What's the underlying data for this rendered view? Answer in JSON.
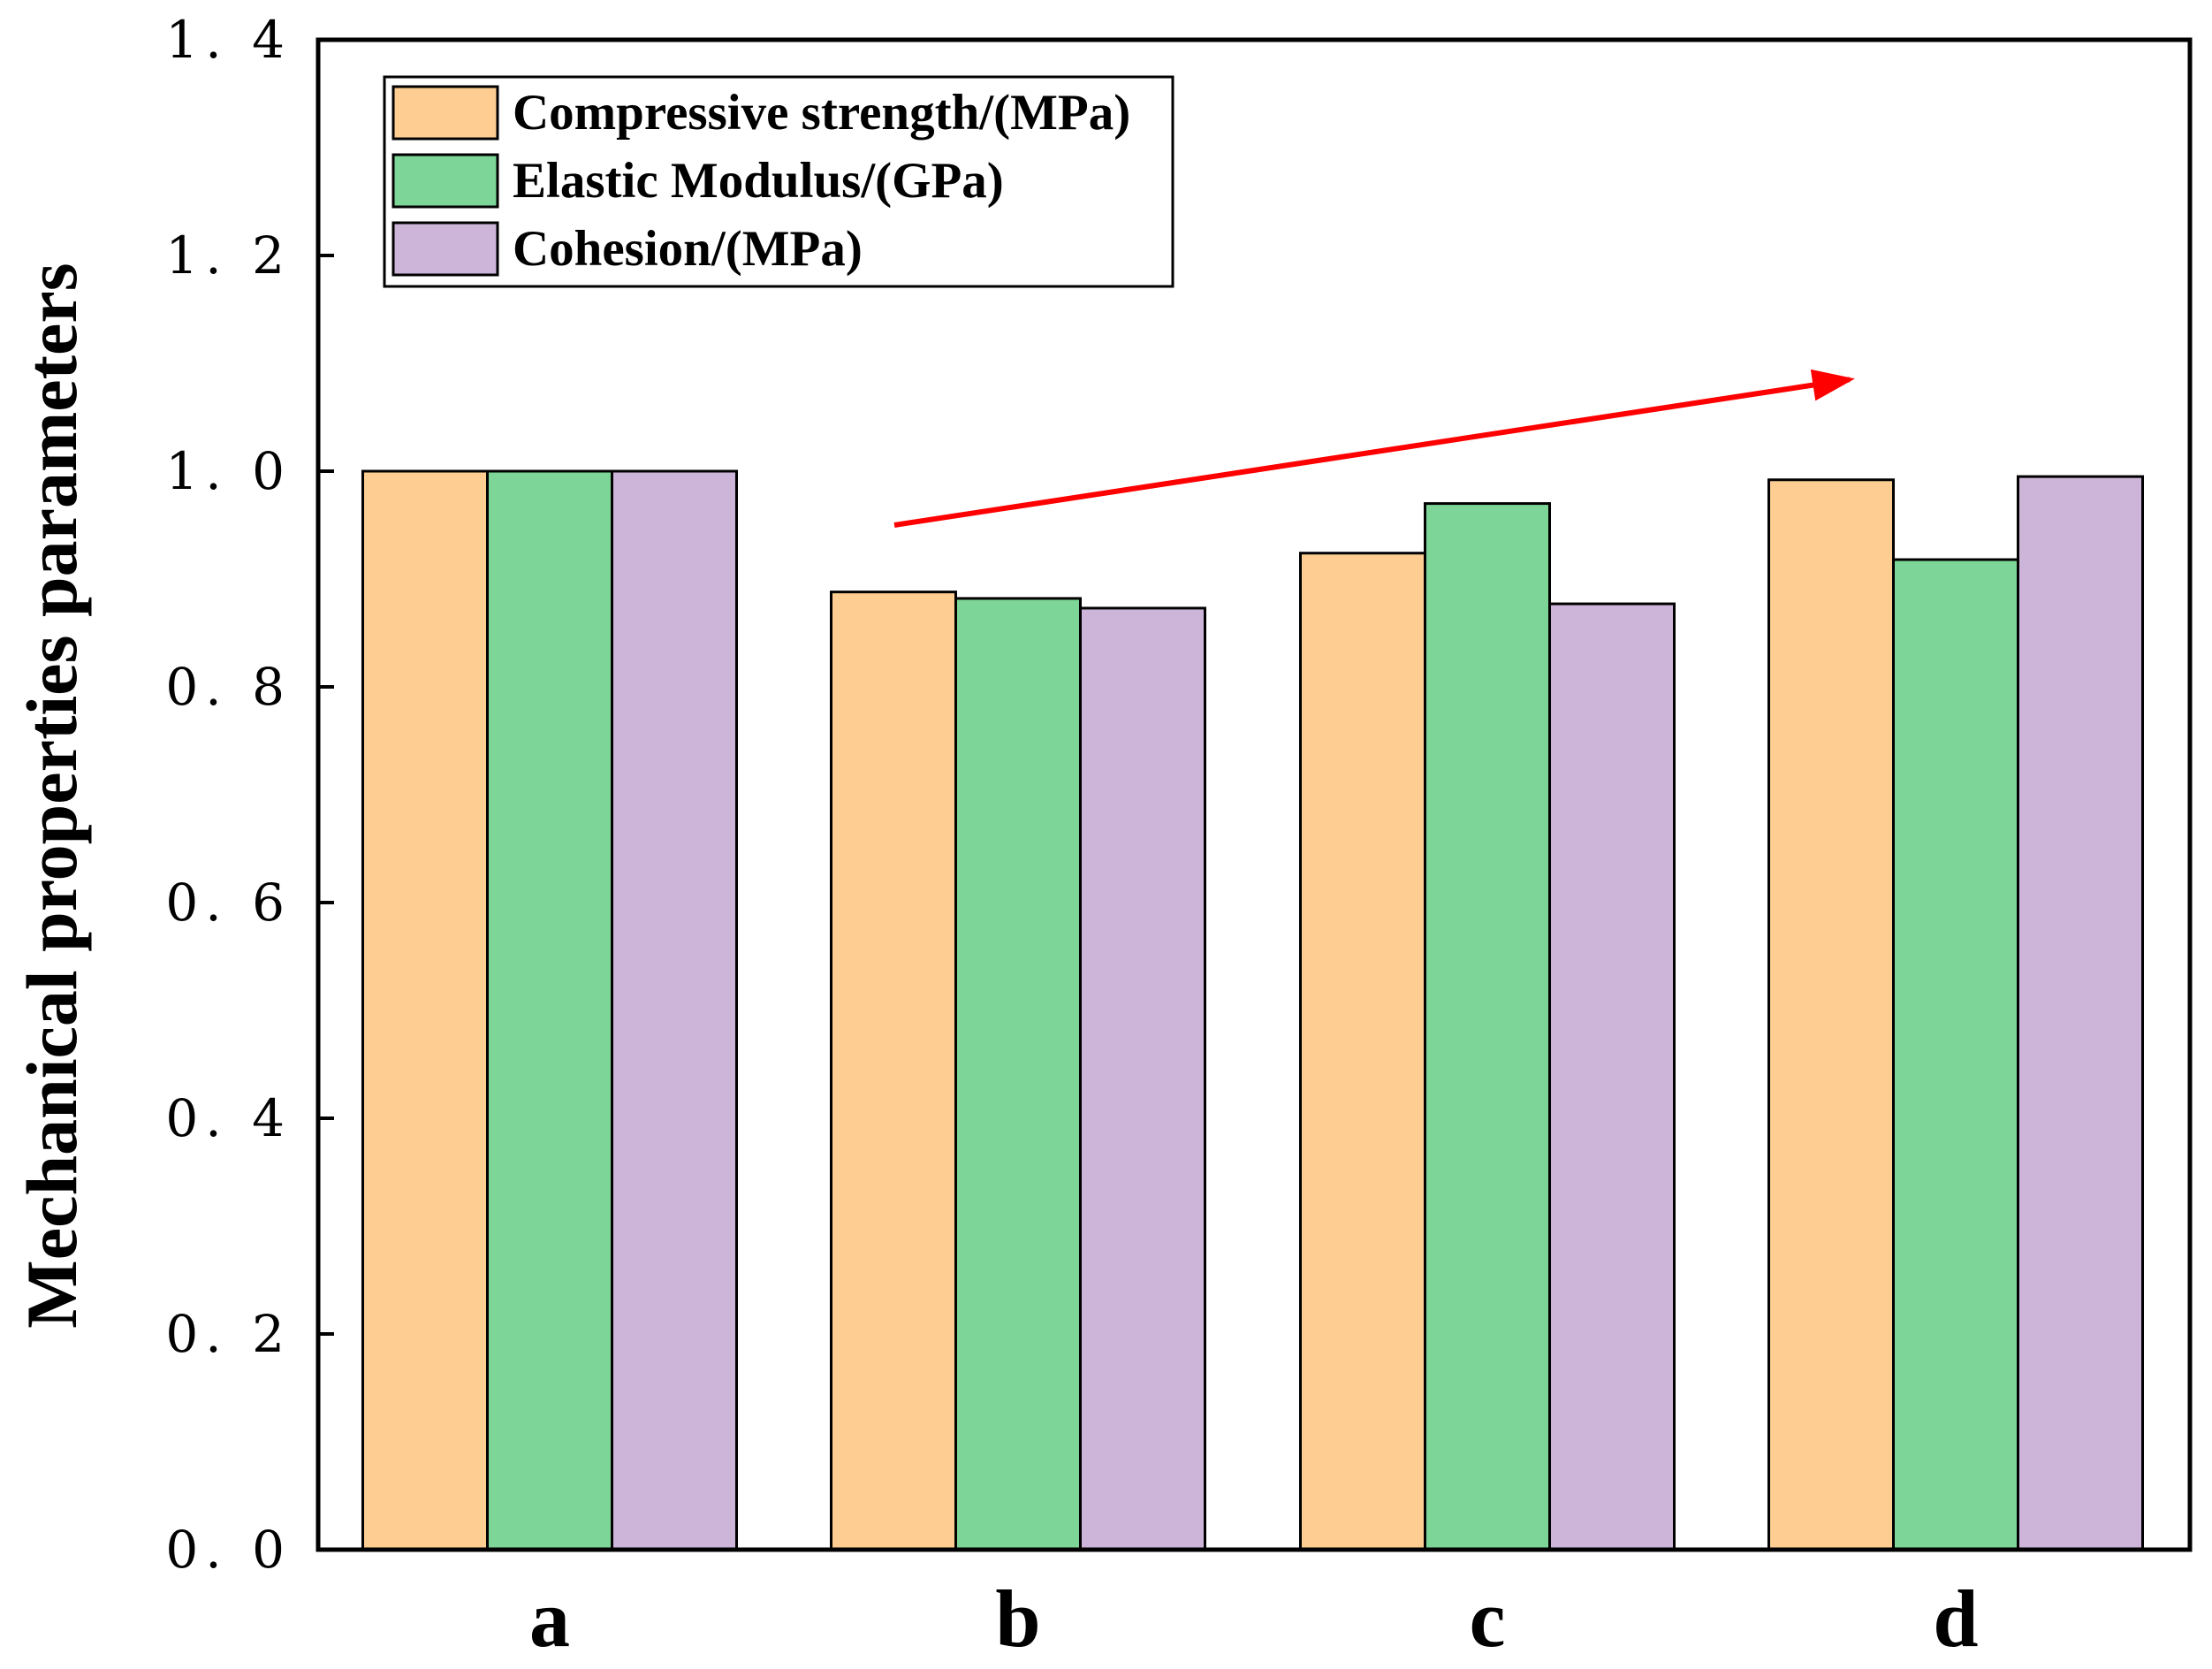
{
  "chart_data": {
    "type": "bar",
    "title": "",
    "xlabel": "",
    "ylabel": "Mechanical properties parameters",
    "categories": [
      "a",
      "b",
      "c",
      "d"
    ],
    "ylim": [
      0,
      1.4
    ],
    "yticks": [
      0.0,
      0.2,
      0.4,
      0.6,
      0.8,
      1.0,
      1.2,
      1.4
    ],
    "ytick_labels": [
      "0. 0",
      "0. 2",
      "0. 4",
      "0. 6",
      "0. 8",
      "1. 0",
      "1. 2",
      "1. 4"
    ],
    "grid": false,
    "legend_position": "top-left",
    "series": [
      {
        "name": "Compressive strength/(MPa)",
        "color": "#FDCD91",
        "values": [
          1.0,
          0.888,
          0.924,
          0.992
        ]
      },
      {
        "name": "Elastic Modulus/(GPa)",
        "color": "#7DD697",
        "values": [
          1.0,
          0.882,
          0.97,
          0.918
        ]
      },
      {
        "name": "Cohesion/(MPa)",
        "color": "#CDB5D9",
        "values": [
          1.0,
          0.873,
          0.877,
          0.995
        ]
      }
    ],
    "annotations": [
      {
        "type": "arrow",
        "color": "#FF0000",
        "from": {
          "category_index": 1,
          "value": 0.95
        },
        "to": {
          "category_index": 3,
          "value": 1.085
        },
        "meaning": "increasing trend"
      }
    ]
  }
}
